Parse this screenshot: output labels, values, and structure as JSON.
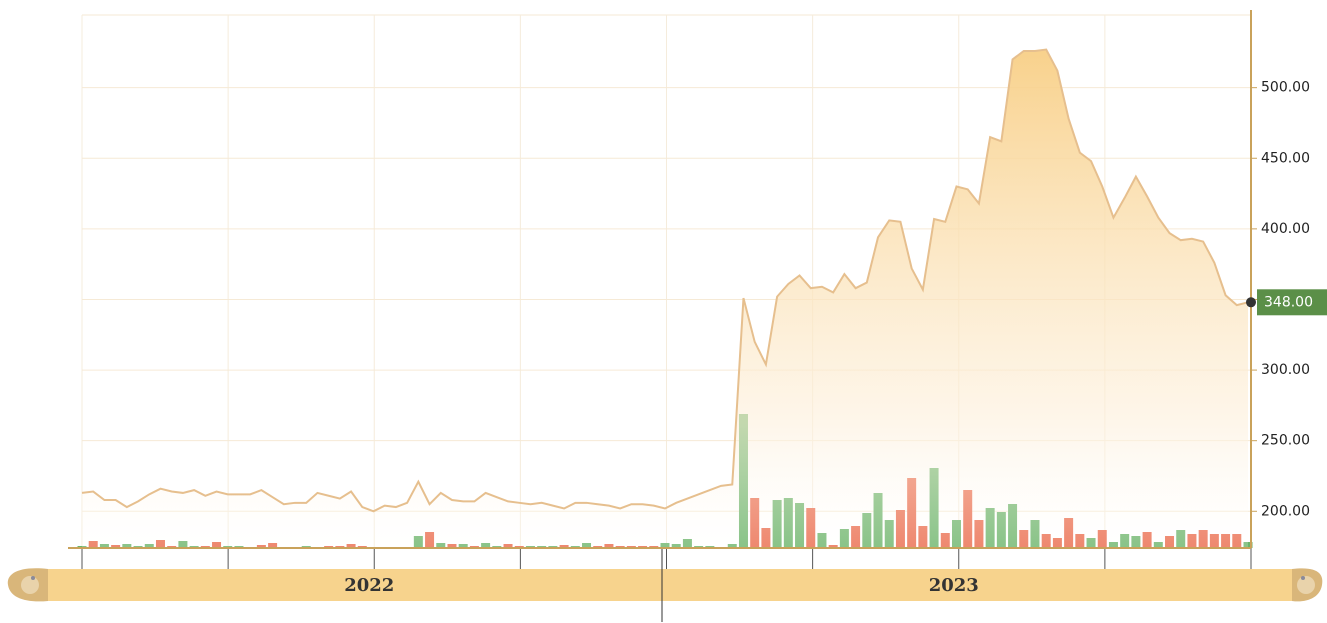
{
  "chart_data": {
    "type": "line",
    "color": "#e6bf8e",
    "values": [
      213,
      214,
      208,
      208,
      203,
      207,
      212,
      216,
      214,
      213,
      215,
      211,
      214,
      212,
      212,
      212,
      215,
      210,
      205,
      206,
      206,
      213,
      211,
      209,
      214,
      203,
      200,
      204,
      203,
      206,
      221,
      205,
      213,
      208,
      207,
      207,
      213,
      210,
      207,
      206,
      205,
      206,
      204,
      202,
      206,
      206,
      205,
      204,
      202,
      205,
      205,
      204,
      202,
      206,
      209,
      212,
      215,
      218,
      219,
      351,
      320,
      304,
      352,
      361,
      367,
      358,
      359,
      355,
      368,
      358,
      362,
      394,
      406,
      405,
      372,
      357,
      407,
      405,
      430,
      428,
      418,
      465,
      462,
      520,
      526,
      526,
      527,
      512,
      478,
      454,
      448,
      430,
      408,
      422,
      437,
      423,
      408,
      397,
      392,
      393,
      391,
      376,
      353,
      346,
      348
    ],
    "ylim": [
      174,
      555
    ],
    "yticks": [
      {
        "value": 200,
        "label": "200.00"
      },
      {
        "value": 250,
        "label": "250.00"
      },
      {
        "value": 300,
        "label": "300.00"
      },
      {
        "value": 350,
        "label": "350.00"
      },
      {
        "value": 400,
        "label": "400.00"
      },
      {
        "value": 450,
        "label": "450.00"
      },
      {
        "value": 500,
        "label": "500.00"
      }
    ],
    "grid": true,
    "last_label": "348.00",
    "last_label_color": "#5b8f48",
    "x_labels": [
      "2022",
      "2023"
    ],
    "volume": {
      "type": "bar",
      "ylim": [
        0,
        538
      ],
      "values": [
        2,
        7,
        4,
        3,
        4,
        2,
        4,
        8,
        2,
        7,
        2,
        2,
        6,
        2,
        2,
        1,
        3,
        5,
        1,
        1,
        2,
        1,
        2,
        2,
        4,
        2,
        1,
        1,
        1,
        1,
        12,
        16,
        5,
        4,
        4,
        2,
        5,
        2,
        4,
        2,
        2,
        2,
        2,
        3,
        2,
        5,
        2,
        4,
        2,
        2,
        2,
        2,
        5,
        4,
        9,
        2,
        2,
        1,
        4,
        134,
        50,
        20,
        48,
        50,
        45,
        40,
        15,
        3,
        19,
        22,
        35,
        55,
        28,
        38,
        70,
        22,
        80,
        15,
        28,
        58,
        28,
        40,
        36,
        44,
        18,
        28,
        14,
        10,
        30,
        14,
        10,
        18,
        6,
        14,
        12,
        16,
        6,
        12,
        18,
        14,
        18,
        14,
        14,
        14,
        6
      ],
      "colors": [
        "#6cb46a",
        "#ea6a4b",
        "#6cb46a",
        "#ea6a4b",
        "#6cb46a",
        "#6cb46a",
        "#6cb46a",
        "#ea6a4b",
        "#ea6a4b",
        "#6cb46a",
        "#6cb46a",
        "#ea6a4b",
        "#ea6a4b",
        "#6cb46a",
        "#6cb46a",
        "#6cb46a",
        "#ea6a4b",
        "#ea6a4b",
        "#6cb46a",
        "#ea6a4b",
        "#6cb46a",
        "#6cb46a",
        "#ea6a4b",
        "#ea6a4b",
        "#ea6a4b",
        "#ea6a4b",
        "#6cb46a",
        "#ea6a4b",
        "#ea6a4b",
        "#6cb46a",
        "#6cb46a",
        "#ea6a4b",
        "#6cb46a",
        "#ea6a4b",
        "#6cb46a",
        "#ea6a4b",
        "#6cb46a",
        "#6cb46a",
        "#ea6a4b",
        "#ea6a4b",
        "#6cb46a",
        "#6cb46a",
        "#6cb46a",
        "#ea6a4b",
        "#6cb46a",
        "#6cb46a",
        "#ea6a4b",
        "#ea6a4b",
        "#ea6a4b",
        "#ea6a4b",
        "#ea6a4b",
        "#ea6a4b",
        "#6cb46a",
        "#6cb46a",
        "#6cb46a",
        "#6cb46a",
        "#6cb46a",
        "#6cb46a",
        "#6cb46a",
        "#6cb46a",
        "#ea6a4b",
        "#ea6a4b",
        "#6cb46a",
        "#6cb46a",
        "#6cb46a",
        "#ea6a4b",
        "#6cb46a",
        "#ea6a4b",
        "#6cb46a",
        "#ea6a4b",
        "#6cb46a",
        "#6cb46a",
        "#6cb46a",
        "#ea6a4b",
        "#ea6a4b",
        "#ea6a4b",
        "#6cb46a",
        "#ea6a4b",
        "#6cb46a",
        "#ea6a4b",
        "#ea6a4b",
        "#6cb46a",
        "#6cb46a",
        "#6cb46a",
        "#ea6a4b",
        "#6cb46a",
        "#ea6a4b",
        "#ea6a4b",
        "#ea6a4b",
        "#ea6a4b",
        "#6cb46a",
        "#ea6a4b",
        "#6cb46a",
        "#6cb46a",
        "#6cb46a",
        "#ea6a4b",
        "#6cb46a",
        "#ea6a4b",
        "#6cb46a",
        "#ea6a4b",
        "#ea6a4b",
        "#ea6a4b",
        "#ea6a4b",
        "#ea6a4b",
        "#6cb46a"
      ]
    }
  }
}
